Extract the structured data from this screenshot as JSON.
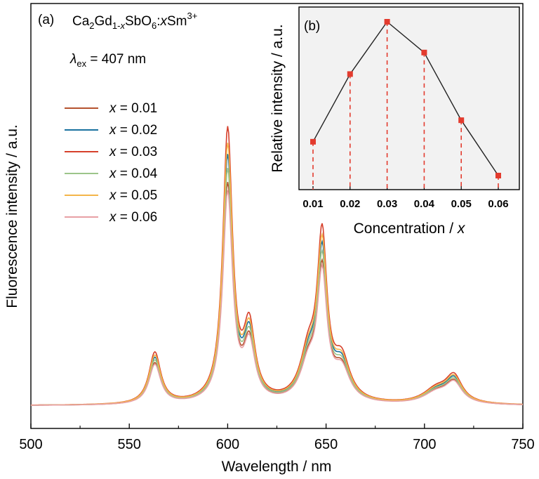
{
  "chart_data": [
    {
      "panel": "(a)",
      "type": "line",
      "formula": {
        "p1": "Ca",
        "s1": "2",
        "p2": "Gd",
        "s2": "1-",
        "s2i": "x",
        "p3": "SbO",
        "s3": "6",
        "p4": ":",
        "p4i": "x",
        "p5": "Sm",
        "sup": "3+"
      },
      "excitation": {
        "symbol": "λ",
        "sub": "ex",
        "text": " = 407 nm"
      },
      "xlabel": "Wavelength / nm",
      "ylabel": "Fluorescence intensity / a.u.",
      "xlim": [
        500,
        750
      ],
      "xticks": [
        "500",
        "550",
        "600",
        "650",
        "700",
        "750"
      ],
      "baseline": 0.05,
      "legend_position": "left",
      "peaks": [
        {
          "center": 563,
          "height": 0.18,
          "width": 3.6
        },
        {
          "center": 600,
          "height": 0.95,
          "width": 3.0
        },
        {
          "center": 611,
          "height": 0.25,
          "width": 3.5
        },
        {
          "center": 641,
          "height": 0.16,
          "width": 5.0
        },
        {
          "center": 648,
          "height": 0.55,
          "width": 3.0
        },
        {
          "center": 658,
          "height": 0.14,
          "width": 5.0
        },
        {
          "center": 706,
          "height": 0.05,
          "width": 8.0
        },
        {
          "center": 715,
          "height": 0.09,
          "width": 5.0
        }
      ],
      "series": [
        {
          "name": "x = 0.01",
          "label_prefix": "x",
          "label_value": " = 0.01",
          "color": "#b5532e",
          "scale": 0.8
        },
        {
          "name": "x = 0.02",
          "label_prefix": "x",
          "label_value": " = 0.02",
          "color": "#1a72a0",
          "scale": 0.9
        },
        {
          "name": "x = 0.03",
          "label_prefix": "x",
          "label_value": " = 0.03",
          "color": "#d6402b",
          "scale": 1.0
        },
        {
          "name": "x = 0.04",
          "label_prefix": "x",
          "label_value": " = 0.04",
          "color": "#9cc58a",
          "scale": 0.85
        },
        {
          "name": "x = 0.05",
          "label_prefix": "x",
          "label_value": " = 0.05",
          "color": "#f4b64a",
          "scale": 0.94
        },
        {
          "name": "x = 0.06",
          "label_prefix": "x",
          "label_value": " = 0.06",
          "color": "#e8a0a5",
          "scale": 0.77
        }
      ]
    },
    {
      "panel": "(b)",
      "type": "line",
      "xlabel": "Concentration / x",
      "xlabel_text": "Concentration / ",
      "xlabel_var": "x",
      "ylabel": "Relative intensity / a.u.",
      "categories": [
        "0.01",
        "0.02",
        "0.03",
        "0.04",
        "0.05",
        "0.06"
      ],
      "values": [
        0.22,
        0.66,
        1.0,
        0.8,
        0.36,
        0.0
      ],
      "ylim": [
        0,
        1
      ],
      "marker_color": "#e33b2e",
      "drop_line_color": "#e33b2e",
      "line_color": "#222222",
      "background": "#f2f2f2"
    }
  ]
}
